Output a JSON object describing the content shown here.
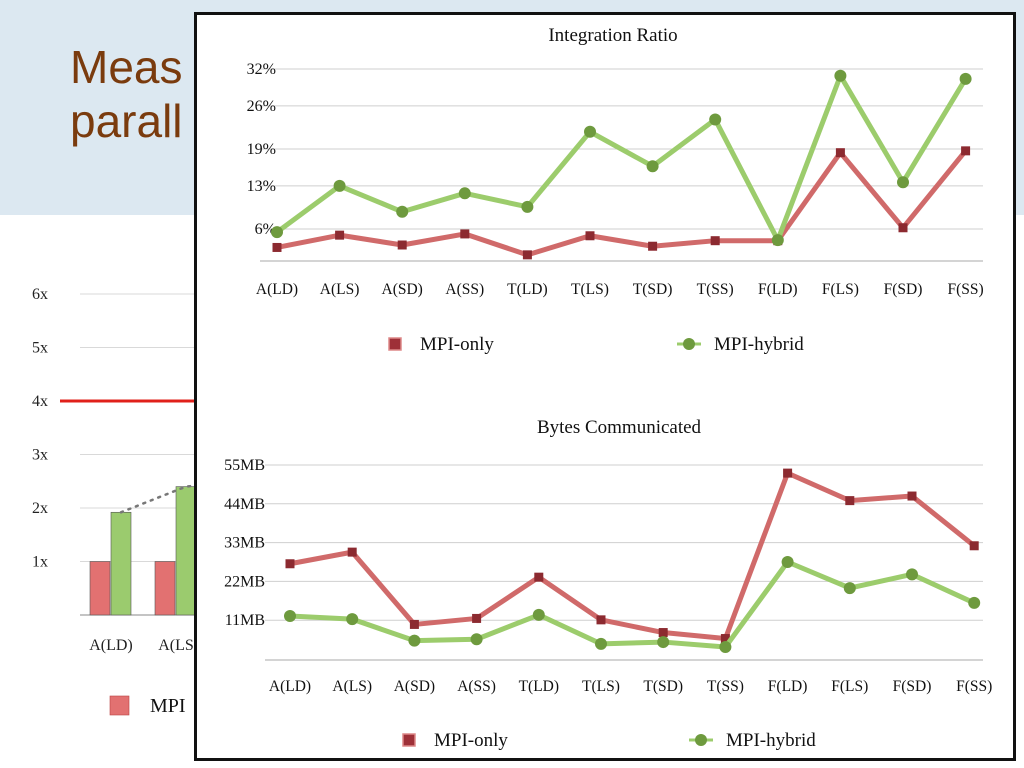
{
  "slide": {
    "title_lines": "Meas\nparall",
    "colors": {
      "title": "#7a3b0e",
      "band": "#dce8f1",
      "target_line": "#e0201a"
    }
  },
  "chart_data": [
    {
      "id": "speedup-bar-chart",
      "type": "bar",
      "partially_occluded": true,
      "y_ticks": [
        "1x",
        "2x",
        "3x",
        "4x",
        "5x",
        "6x"
      ],
      "ylim": [
        0,
        6
      ],
      "categories": [
        "A(LD)",
        "A(LS"
      ],
      "series": [
        {
          "name": "MPI",
          "color": "#e27171",
          "values": [
            1,
            1
          ]
        },
        {
          "name": "",
          "color": "#9bcb6e",
          "values": [
            1.92,
            2.4
          ]
        }
      ],
      "reference_line": 4,
      "grid": true
    },
    {
      "id": "integration-ratio",
      "type": "line",
      "title": "Integration Ratio",
      "categories": [
        "A(LD)",
        "A(LS)",
        "A(SD)",
        "A(SS)",
        "T(LD)",
        "T(LS)",
        "T(SD)",
        "T(SS)",
        "F(LD)",
        "F(LS)",
        "F(SD)",
        "F(SS)"
      ],
      "y_ticks": [
        "6%",
        "13%",
        "19%",
        "26%",
        "32%"
      ],
      "y_tick_values": [
        6,
        13,
        19,
        26,
        32
      ],
      "ylim": [
        -0.5,
        32
      ],
      "grid": true,
      "legend_position": "bottom",
      "series": [
        {
          "name": "MPI-only",
          "color": "#d06a6a",
          "marker_color": "#8c2a30",
          "marker": "square",
          "values": [
            3.0,
            5.0,
            3.4,
            5.2,
            1.8,
            4.9,
            3.2,
            4.1,
            4.1,
            18.4,
            6.2,
            18.7
          ]
        },
        {
          "name": "MPI-hybrid",
          "color": "#9ccc6c",
          "marker_color": "#6e9a3e",
          "marker": "circle",
          "values": [
            5.5,
            13.0,
            8.8,
            11.8,
            9.6,
            21.8,
            16.2,
            23.8,
            4.2,
            30.9,
            13.6,
            30.4
          ]
        }
      ]
    },
    {
      "id": "bytes-communicated",
      "type": "line",
      "title": "Bytes Communicated",
      "categories": [
        "A(LD)",
        "A(LS)",
        "A(SD)",
        "A(SS)",
        "T(LD)",
        "T(LS)",
        "T(SD)",
        "T(SS)",
        "F(LD)",
        "F(LS)",
        "F(SD)",
        "F(SS)"
      ],
      "y_ticks": [
        "11MB",
        "22MB",
        "33MB",
        "44MB",
        "55MB"
      ],
      "y_tick_values": [
        11,
        22,
        33,
        44,
        55
      ],
      "ylim": [
        0,
        55
      ],
      "grid": true,
      "legend_position": "bottom",
      "series": [
        {
          "name": "MPI-only",
          "color": "#d06a6a",
          "marker_color": "#8c2a30",
          "marker": "square",
          "values": [
            27,
            30.3,
            9.8,
            11.5,
            23.2,
            11.1,
            7.5,
            5.8,
            52.7,
            44.9,
            46.2,
            32.1
          ]
        },
        {
          "name": "MPI-hybrid",
          "color": "#9ccc6c",
          "marker_color": "#6e9a3e",
          "marker": "circle",
          "values": [
            12.2,
            11.3,
            5.2,
            5.6,
            12.5,
            4.3,
            4.8,
            3.4,
            27.5,
            20.1,
            24,
            15.9
          ]
        }
      ]
    }
  ]
}
